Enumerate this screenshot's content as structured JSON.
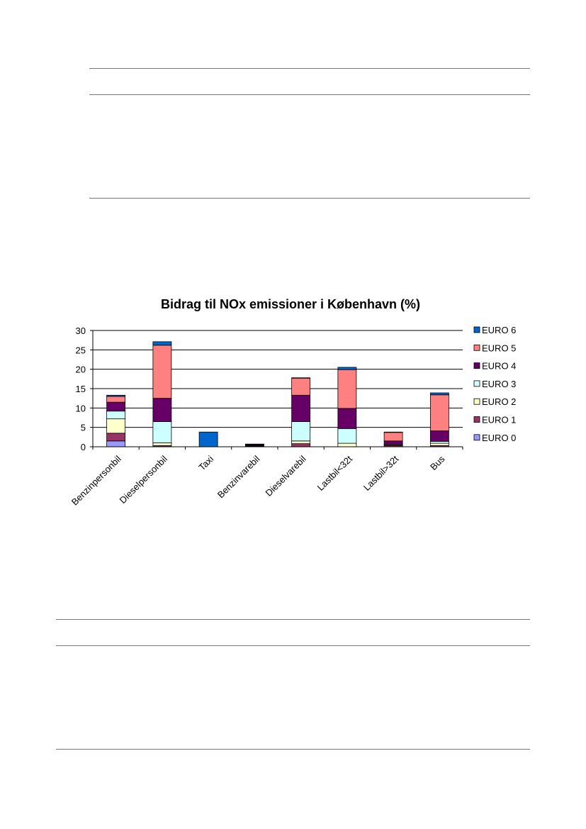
{
  "chart_data": {
    "type": "bar",
    "stacked": true,
    "title": "Bidrag til NOx emissioner i København  (%)",
    "xlabel": "",
    "ylabel": "",
    "ylim": [
      0,
      30
    ],
    "yticks": [
      0,
      5,
      10,
      15,
      20,
      25,
      30
    ],
    "grid": true,
    "legend_position": "right",
    "categories": [
      "Benzinpersonbil",
      "Dieselpersonbil",
      "Taxi",
      "Benzinvarebil",
      "Dieselvarebil",
      "Lastbil<32t",
      "Lastbil>32t",
      "Bus"
    ],
    "series": [
      {
        "name": "EURO 0",
        "color": "#9999ff",
        "values": [
          1.5,
          0.0,
          0.0,
          0.0,
          0.0,
          0.0,
          0.0,
          0.0
        ]
      },
      {
        "name": "EURO 1",
        "color": "#993366",
        "values": [
          2.0,
          0.3,
          0.0,
          0.2,
          0.8,
          0.0,
          0.3,
          0.3
        ]
      },
      {
        "name": "EURO 2",
        "color": "#ffffcc",
        "values": [
          3.7,
          0.7,
          0.0,
          0.1,
          0.7,
          0.9,
          0.2,
          0.6
        ]
      },
      {
        "name": "EURO 3",
        "color": "#ccffff",
        "values": [
          2.0,
          5.5,
          0.0,
          0.1,
          5.0,
          3.8,
          0.1,
          0.5
        ]
      },
      {
        "name": "EURO 4",
        "color": "#660066",
        "values": [
          2.3,
          6.0,
          0.0,
          0.2,
          6.8,
          5.2,
          0.9,
          2.7
        ]
      },
      {
        "name": "EURO 5",
        "color": "#ff8080",
        "values": [
          1.5,
          13.7,
          0.0,
          0.1,
          4.4,
          10.0,
          2.2,
          9.3
        ]
      },
      {
        "name": "EURO 6",
        "color": "#0066cc",
        "values": [
          0.3,
          0.9,
          3.8,
          0.0,
          0.1,
          0.6,
          0.1,
          0.5
        ]
      }
    ]
  }
}
